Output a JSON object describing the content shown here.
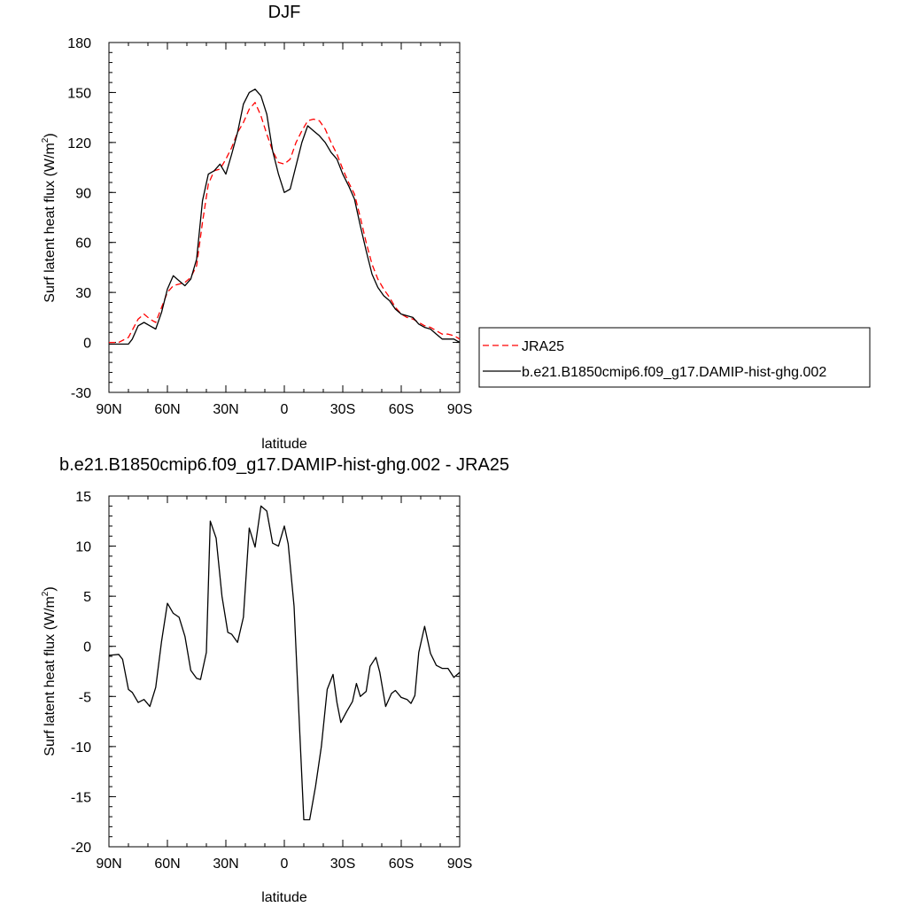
{
  "chart_data": [
    {
      "type": "line",
      "title": "DJF",
      "xlabel": "latitude",
      "ylabel": "Surf latent heat flux (W/m",
      "ylabel_sup": "2",
      "ylabel_close": ")",
      "xlim": [
        90,
        -90
      ],
      "ylim": [
        -30,
        180
      ],
      "xticks": [
        {
          "value": 90,
          "label": "90N"
        },
        {
          "value": 60,
          "label": "60N"
        },
        {
          "value": 30,
          "label": "30N"
        },
        {
          "value": 0,
          "label": "0"
        },
        {
          "value": -30,
          "label": "30S"
        },
        {
          "value": -60,
          "label": "60S"
        },
        {
          "value": -90,
          "label": "90S"
        }
      ],
      "yticks": [
        180,
        150,
        120,
        90,
        60,
        30,
        0,
        -30
      ],
      "legend": {
        "placement": "right",
        "entries": [
          {
            "label": "JRA25",
            "color": "#ff0000",
            "style": "dashed"
          },
          {
            "label": "b.e21.B1850cmip6.f09_g17.DAMIP-hist-ghg.002",
            "color": "#000000",
            "style": "solid"
          }
        ]
      },
      "series": [
        {
          "name": "JRA25",
          "color": "#ff0000",
          "style": "dashed",
          "x": [
            90,
            85,
            80,
            75,
            72,
            69,
            66,
            63,
            60,
            57,
            54,
            51,
            48,
            45,
            42,
            39,
            36,
            33,
            30,
            27,
            24,
            21,
            18,
            15,
            12,
            9,
            6,
            3,
            0,
            -3,
            -6,
            -9,
            -12,
            -15,
            -18,
            -21,
            -24,
            -27,
            -30,
            -33,
            -36,
            -39,
            -42,
            -45,
            -48,
            -51,
            -54,
            -57,
            -60,
            -63,
            -66,
            -69,
            -72,
            -75,
            -78,
            -81,
            -84,
            -87,
            -90
          ],
          "y": [
            0,
            0,
            3,
            14,
            17,
            14,
            12,
            21,
            30,
            34,
            35,
            36,
            39,
            46,
            72,
            95,
            103,
            104,
            110,
            117,
            126,
            132,
            140,
            144,
            136,
            125,
            115,
            108,
            107,
            110,
            120,
            127,
            133,
            134,
            133,
            128,
            120,
            113,
            104,
            96,
            89,
            75,
            60,
            47,
            38,
            32,
            27,
            21,
            17,
            15,
            14,
            12,
            10,
            9,
            7,
            5,
            5,
            4,
            2
          ]
        },
        {
          "name": "b.e21.B1850cmip6.f09_g17.DAMIP-hist-ghg.002",
          "color": "#000000",
          "style": "solid",
          "x": [
            90,
            85,
            80,
            78,
            75,
            72,
            69,
            66,
            63,
            60,
            57,
            54,
            51,
            48,
            45,
            42,
            39,
            36,
            33,
            30,
            27,
            24,
            21,
            18,
            15,
            12,
            9,
            6,
            3,
            0,
            -3,
            -6,
            -9,
            -12,
            -15,
            -18,
            -21,
            -24,
            -27,
            -30,
            -33,
            -36,
            -39,
            -42,
            -45,
            -48,
            -51,
            -54,
            -57,
            -60,
            -63,
            -66,
            -69,
            -72,
            -75,
            -78,
            -81,
            -84,
            -87,
            -90
          ],
          "y": [
            -1,
            -1,
            -1,
            2,
            10,
            12,
            10,
            8,
            18,
            32,
            40,
            37,
            34,
            38,
            50,
            85,
            101,
            103,
            107,
            101,
            113,
            126,
            143,
            150,
            152,
            148,
            137,
            115,
            101,
            90,
            92,
            106,
            120,
            130,
            127,
            124,
            120,
            114,
            110,
            101,
            94,
            86,
            70,
            55,
            41,
            33,
            28,
            25,
            20,
            17,
            16,
            15,
            11,
            9,
            8,
            5,
            2,
            2,
            2,
            0
          ]
        }
      ]
    },
    {
      "type": "line",
      "title": "b.e21.B1850cmip6.f09_g17.DAMIP-hist-ghg.002 - JRA25",
      "xlabel": "latitude",
      "ylabel": "Surf latent heat flux (W/m",
      "ylabel_sup": "2",
      "ylabel_close": ")",
      "xlim": [
        90,
        -90
      ],
      "ylim": [
        -20,
        15
      ],
      "xticks": [
        {
          "value": 90,
          "label": "90N"
        },
        {
          "value": 60,
          "label": "60N"
        },
        {
          "value": 30,
          "label": "30N"
        },
        {
          "value": 0,
          "label": "0"
        },
        {
          "value": -30,
          "label": "30S"
        },
        {
          "value": -60,
          "label": "60S"
        },
        {
          "value": -90,
          "label": "90S"
        }
      ],
      "yticks": [
        15,
        10,
        5,
        0,
        -5,
        -10,
        -15,
        -20
      ],
      "series": [
        {
          "color": "#000000",
          "style": "solid",
          "x": [
            90,
            85,
            83,
            80,
            78,
            75,
            72,
            69,
            66,
            63,
            60,
            57,
            54,
            51,
            48,
            45,
            43,
            40,
            38,
            35,
            32,
            29,
            27,
            24,
            21,
            18,
            15,
            12,
            9,
            6,
            3,
            0,
            -2,
            -5,
            -8,
            -10,
            -13,
            -16,
            -19,
            -22,
            -25,
            -27,
            -29,
            -32,
            -35,
            -37,
            -39,
            -42,
            -44,
            -47,
            -49,
            -52,
            -55,
            -57,
            -60,
            -63,
            -65,
            -67,
            -69,
            -72,
            -75,
            -78,
            -81,
            -84,
            -87,
            -90
          ],
          "y": [
            -0.9,
            -0.8,
            -1.3,
            -4.3,
            -4.6,
            -5.6,
            -5.3,
            -6.0,
            -4.1,
            0.5,
            4.3,
            3.3,
            2.9,
            1.0,
            -2.4,
            -3.2,
            -3.3,
            -0.6,
            12.5,
            10.8,
            5.0,
            1.4,
            1.2,
            0.4,
            2.9,
            11.8,
            9.9,
            14.0,
            13.5,
            10.3,
            10.0,
            12.0,
            10.2,
            4.0,
            -8.9,
            -17.3,
            -17.3,
            -14.0,
            -10.0,
            -4.3,
            -2.8,
            -5.6,
            -7.6,
            -6.5,
            -5.5,
            -3.7,
            -5.0,
            -4.5,
            -2.0,
            -1.1,
            -2.6,
            -6.0,
            -4.7,
            -4.4,
            -5.1,
            -5.3,
            -5.7,
            -4.9,
            -0.6,
            2.0,
            -0.7,
            -1.9,
            -2.2,
            -2.2,
            -3.1,
            -2.6
          ]
        }
      ]
    }
  ]
}
